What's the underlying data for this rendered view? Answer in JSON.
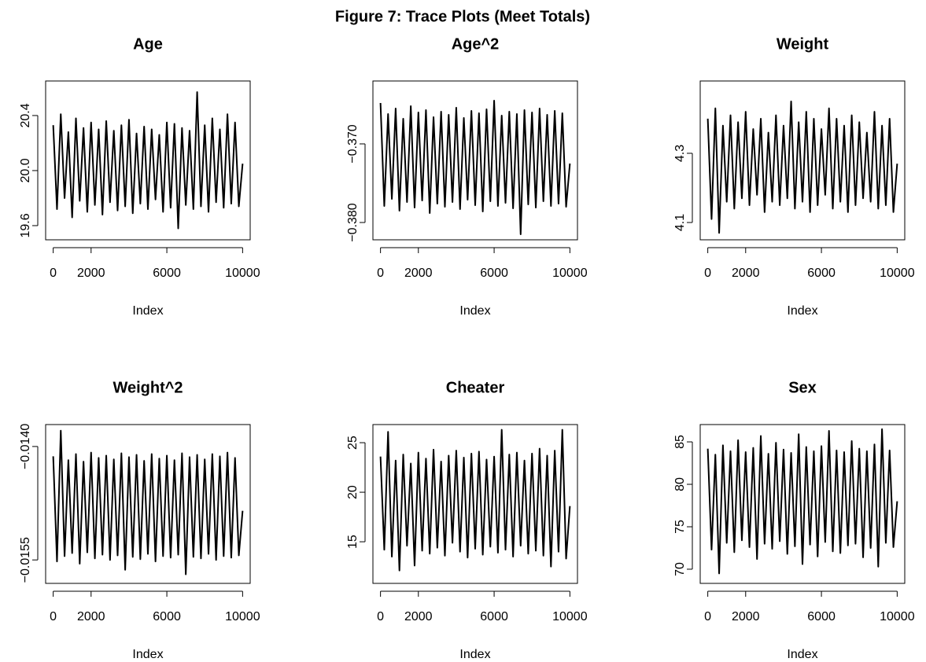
{
  "title": "Figure 7: Trace Plots (Meet Totals)",
  "chart_data": [
    {
      "type": "line",
      "title": "Age",
      "xlabel": "Index",
      "color": "#000000",
      "x": [
        0,
        200,
        400,
        600,
        800,
        1000,
        1200,
        1400,
        1600,
        1800,
        2000,
        2200,
        2400,
        2600,
        2800,
        3000,
        3200,
        3400,
        3600,
        3800,
        4000,
        4200,
        4400,
        4600,
        4800,
        5000,
        5200,
        5400,
        5600,
        5800,
        6000,
        6200,
        6400,
        6600,
        6800,
        7000,
        7200,
        7400,
        7600,
        7800,
        8000,
        8200,
        8400,
        8600,
        8800,
        9000,
        9200,
        9400,
        9600,
        9800,
        10000
      ],
      "values": [
        20.33,
        19.72,
        20.41,
        19.8,
        20.28,
        19.66,
        20.38,
        19.78,
        20.31,
        19.7,
        20.35,
        19.75,
        20.3,
        19.68,
        20.36,
        19.77,
        20.29,
        19.71,
        20.33,
        19.74,
        20.37,
        19.69,
        20.27,
        19.76,
        20.32,
        19.72,
        20.3,
        19.79,
        20.26,
        19.7,
        20.35,
        19.73,
        20.34,
        19.58,
        20.31,
        19.75,
        20.29,
        19.72,
        20.57,
        19.74,
        20.33,
        19.7,
        20.38,
        19.77,
        20.3,
        19.73,
        20.41,
        19.76,
        20.35,
        19.74,
        20.05
      ],
      "xlim": [
        -400,
        10400
      ],
      "ylim": [
        19.497,
        20.651
      ],
      "xticks": [
        0,
        2000,
        6000,
        10000
      ],
      "yticks": [
        19.6,
        {
          "value": 20,
          "label": "20.0"
        },
        20.4
      ]
    },
    {
      "type": "line",
      "title": "Age^2",
      "xlabel": "Index",
      "color": "#000000",
      "x": [
        0,
        200,
        400,
        600,
        800,
        1000,
        1200,
        1400,
        1600,
        1800,
        2000,
        2200,
        2400,
        2600,
        2800,
        3000,
        3200,
        3400,
        3600,
        3800,
        4000,
        4200,
        4400,
        4600,
        4800,
        5000,
        5200,
        5400,
        5600,
        5800,
        6000,
        6200,
        6400,
        6600,
        6800,
        7000,
        7200,
        7400,
        7600,
        7800,
        8000,
        8200,
        8400,
        8600,
        8800,
        9000,
        9200,
        9400,
        9600,
        9800,
        10000
      ],
      "values": [
        -0.3648,
        -0.3779,
        -0.3662,
        -0.377,
        -0.3655,
        -0.3785,
        -0.3668,
        -0.3774,
        -0.3652,
        -0.3781,
        -0.366,
        -0.3772,
        -0.3657,
        -0.3788,
        -0.3666,
        -0.3776,
        -0.3659,
        -0.378,
        -0.3663,
        -0.3774,
        -0.3654,
        -0.3783,
        -0.3667,
        -0.3771,
        -0.3658,
        -0.3778,
        -0.3661,
        -0.3786,
        -0.3656,
        -0.3773,
        -0.3645,
        -0.3779,
        -0.3664,
        -0.3775,
        -0.3659,
        -0.3782,
        -0.3662,
        -0.3815,
        -0.3657,
        -0.3777,
        -0.366,
        -0.3781,
        -0.3655,
        -0.3773,
        -0.3663,
        -0.3779,
        -0.3658,
        -0.3776,
        -0.3661,
        -0.378,
        -0.3725
      ],
      "xlim": [
        -400,
        10400
      ],
      "ylim": [
        -0.3822,
        -0.362
      ],
      "xticks": [
        0,
        2000,
        6000,
        10000
      ],
      "yticks": [
        {
          "value": -0.38,
          "label": "−0.380"
        },
        {
          "value": -0.37,
          "label": "−0.370"
        }
      ]
    },
    {
      "type": "line",
      "title": "Weight",
      "xlabel": "Index",
      "color": "#000000",
      "x": [
        0,
        200,
        400,
        600,
        800,
        1000,
        1200,
        1400,
        1600,
        1800,
        2000,
        2200,
        2400,
        2600,
        2800,
        3000,
        3200,
        3400,
        3600,
        3800,
        4000,
        4200,
        4400,
        4600,
        4800,
        5000,
        5200,
        5400,
        5600,
        5800,
        6000,
        6200,
        6400,
        6600,
        6800,
        7000,
        7200,
        7400,
        7600,
        7800,
        8000,
        8200,
        8400,
        8600,
        8800,
        9000,
        9200,
        9400,
        9600,
        9800,
        10000
      ],
      "values": [
        4.4,
        4.11,
        4.43,
        4.07,
        4.38,
        4.16,
        4.41,
        4.14,
        4.39,
        4.17,
        4.42,
        4.15,
        4.37,
        4.18,
        4.4,
        4.13,
        4.36,
        4.16,
        4.41,
        4.15,
        4.38,
        4.17,
        4.45,
        4.14,
        4.39,
        4.16,
        4.42,
        4.13,
        4.4,
        4.15,
        4.37,
        4.18,
        4.43,
        4.14,
        4.4,
        4.16,
        4.38,
        4.13,
        4.41,
        4.15,
        4.39,
        4.17,
        4.36,
        4.16,
        4.42,
        4.14,
        4.38,
        4.15,
        4.4,
        4.13,
        4.27
      ],
      "xlim": [
        -400,
        10400
      ],
      "ylim": [
        4.05,
        4.509
      ],
      "xticks": [
        0,
        2000,
        6000,
        10000
      ],
      "yticks": [
        4.1,
        4.3
      ]
    },
    {
      "type": "line",
      "title": "Weight^2",
      "xlabel": "Index",
      "color": "#000000",
      "x": [
        0,
        200,
        400,
        600,
        800,
        1000,
        1200,
        1400,
        1600,
        1800,
        2000,
        2200,
        2400,
        2600,
        2800,
        3000,
        3200,
        3400,
        3600,
        3800,
        4000,
        4200,
        4400,
        4600,
        4800,
        5000,
        5200,
        5400,
        5600,
        5800,
        6000,
        6200,
        6400,
        6600,
        6800,
        7000,
        7200,
        7400,
        7600,
        7800,
        8000,
        8200,
        8400,
        8600,
        8800,
        9000,
        9200,
        9400,
        9600,
        9800,
        10000
      ],
      "values": [
        -0.01413,
        -0.01552,
        -0.01379,
        -0.01545,
        -0.01418,
        -0.01541,
        -0.0141,
        -0.01555,
        -0.0142,
        -0.0154,
        -0.01408,
        -0.01548,
        -0.01415,
        -0.01543,
        -0.01412,
        -0.0155,
        -0.01417,
        -0.01544,
        -0.01409,
        -0.01563,
        -0.01414,
        -0.01546,
        -0.01411,
        -0.01549,
        -0.01419,
        -0.01542,
        -0.0141,
        -0.01552,
        -0.01416,
        -0.01545,
        -0.01412,
        -0.01547,
        -0.01418,
        -0.01543,
        -0.01409,
        -0.01569,
        -0.01414,
        -0.01546,
        -0.01411,
        -0.01548,
        -0.01417,
        -0.01542,
        -0.0141,
        -0.0155,
        -0.01413,
        -0.01545,
        -0.01408,
        -0.01547,
        -0.01415,
        -0.01544,
        -0.01485
      ],
      "xlim": [
        -400,
        10400
      ],
      "ylim": [
        -0.01581,
        -0.01371
      ],
      "xticks": [
        0,
        2000,
        6000,
        10000
      ],
      "yticks": [
        {
          "value": -0.0155,
          "label": "−0.0155"
        },
        {
          "value": -0.014,
          "label": "−0.0140"
        }
      ]
    },
    {
      "type": "line",
      "title": "Cheater",
      "xlabel": "Index",
      "color": "#000000",
      "x": [
        0,
        200,
        400,
        600,
        800,
        1000,
        1200,
        1400,
        1600,
        1800,
        2000,
        2200,
        2400,
        2600,
        2800,
        3000,
        3200,
        3400,
        3600,
        3800,
        4000,
        4200,
        4400,
        4600,
        4800,
        5000,
        5200,
        5400,
        5600,
        5800,
        6000,
        6200,
        6400,
        6600,
        6800,
        7000,
        7200,
        7400,
        7600,
        7800,
        8000,
        8200,
        8400,
        8600,
        8800,
        9000,
        9200,
        9400,
        9600,
        9800,
        10000
      ],
      "values": [
        23.6,
        14.2,
        26.1,
        13.5,
        23.2,
        12.1,
        23.8,
        14.6,
        22.9,
        12.6,
        24.0,
        14.1,
        23.4,
        13.8,
        24.3,
        14.4,
        23.1,
        13.6,
        23.7,
        14.9,
        24.2,
        14.0,
        23.5,
        13.4,
        23.9,
        14.3,
        24.1,
        13.7,
        23.3,
        14.5,
        23.6,
        13.9,
        26.3,
        14.2,
        23.8,
        13.5,
        24.0,
        14.6,
        23.2,
        13.8,
        23.9,
        14.1,
        24.4,
        13.6,
        23.7,
        12.5,
        24.2,
        14.0,
        26.3,
        13.3,
        18.6
      ],
      "xlim": [
        -400,
        10400
      ],
      "ylim": [
        10.8,
        26.83
      ],
      "xticks": [
        0,
        2000,
        6000,
        10000
      ],
      "yticks": [
        15,
        20,
        25
      ]
    },
    {
      "type": "line",
      "title": "Sex",
      "xlabel": "Index",
      "color": "#000000",
      "x": [
        0,
        200,
        400,
        600,
        800,
        1000,
        1200,
        1400,
        1600,
        1800,
        2000,
        2200,
        2400,
        2600,
        2800,
        3000,
        3200,
        3400,
        3600,
        3800,
        4000,
        4200,
        4400,
        4600,
        4800,
        5000,
        5200,
        5400,
        5600,
        5800,
        6000,
        6200,
        6400,
        6600,
        6800,
        7000,
        7200,
        7400,
        7600,
        7800,
        8000,
        8200,
        8400,
        8600,
        8800,
        9000,
        9200,
        9400,
        9600,
        9800,
        10000
      ],
      "values": [
        84.2,
        72.3,
        83.5,
        69.5,
        84.6,
        73.1,
        83.9,
        72.0,
        85.2,
        73.4,
        83.8,
        72.6,
        84.3,
        71.2,
        85.7,
        73.0,
        83.6,
        72.4,
        84.9,
        73.3,
        84.1,
        71.8,
        83.7,
        72.7,
        85.9,
        70.6,
        84.4,
        72.9,
        83.9,
        71.5,
        84.5,
        73.2,
        86.3,
        72.1,
        84.0,
        71.9,
        83.8,
        72.8,
        85.1,
        73.0,
        84.2,
        71.4,
        83.9,
        72.5,
        84.7,
        70.3,
        86.5,
        73.1,
        84.0,
        72.6,
        78.0
      ],
      "xlim": [
        -400,
        10400
      ],
      "ylim": [
        68.33,
        87.04
      ],
      "xticks": [
        0,
        2000,
        6000,
        10000
      ],
      "yticks": [
        70,
        75,
        80,
        85
      ]
    }
  ]
}
